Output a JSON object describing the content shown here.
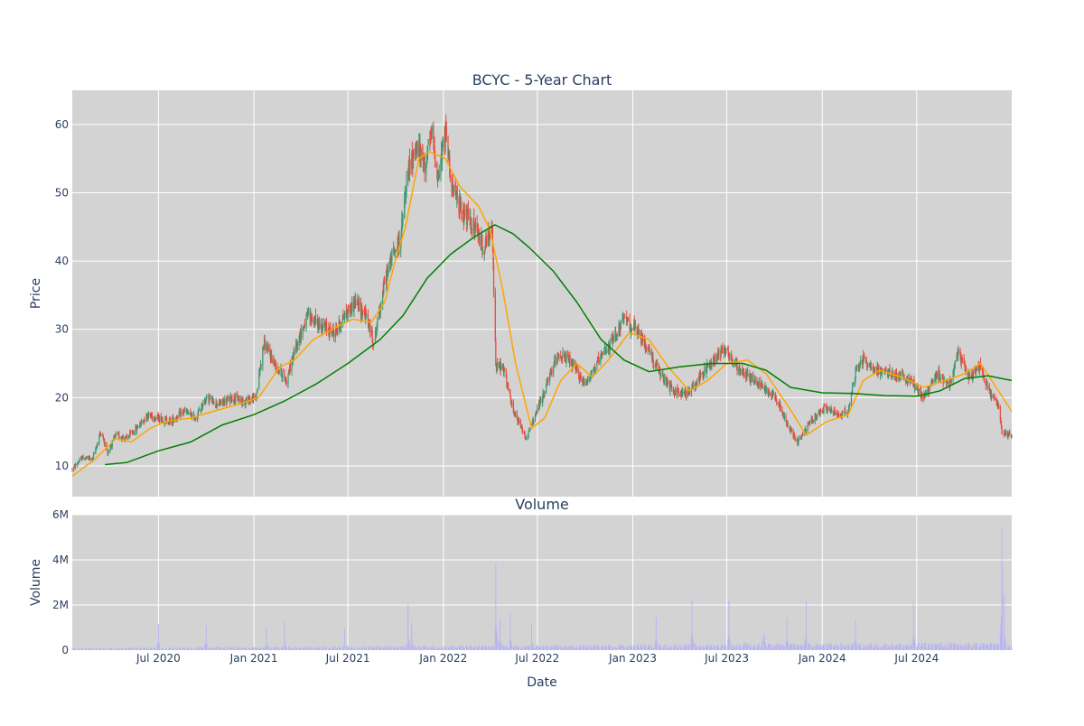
{
  "chart_data": [
    {
      "type": "candlestick",
      "title": "BCYC - 5-Year Chart",
      "xlabel": "",
      "ylabel": "Price",
      "yticks": [
        10,
        20,
        30,
        40,
        50,
        60
      ],
      "ylim": [
        5.5,
        65
      ],
      "xlim": [
        "2020-01-17",
        "2024-12-31"
      ],
      "grid": true,
      "background": "#d3d3d3",
      "increasing_color": "#3d9970",
      "decreasing_color": "#e74c3c",
      "price_path": [
        [
          "2020-01-17",
          9.5
        ],
        [
          "2020-02-05",
          11.2
        ],
        [
          "2020-02-25",
          11.0
        ],
        [
          "2020-03-12",
          15.0
        ],
        [
          "2020-03-25",
          12.0
        ],
        [
          "2020-04-10",
          14.5
        ],
        [
          "2020-05-01",
          14.0
        ],
        [
          "2020-05-20",
          15.5
        ],
        [
          "2020-06-10",
          17.5
        ],
        [
          "2020-07-01",
          17.0
        ],
        [
          "2020-07-25",
          16.5
        ],
        [
          "2020-08-20",
          18.0
        ],
        [
          "2020-09-10",
          17.0
        ],
        [
          "2020-10-01",
          20.0
        ],
        [
          "2020-10-25",
          19.0
        ],
        [
          "2020-11-20",
          20.0
        ],
        [
          "2020-12-15",
          19.5
        ],
        [
          "2021-01-05",
          20.0
        ],
        [
          "2021-01-20",
          28.0
        ],
        [
          "2021-02-10",
          25.0
        ],
        [
          "2021-03-05",
          22.5
        ],
        [
          "2021-03-25",
          28.0
        ],
        [
          "2021-04-15",
          32.0
        ],
        [
          "2021-05-10",
          30.5
        ],
        [
          "2021-06-05",
          29.5
        ],
        [
          "2021-06-25",
          32.0
        ],
        [
          "2021-07-15",
          34.0
        ],
        [
          "2021-08-05",
          32.0
        ],
        [
          "2021-08-20",
          28.0
        ],
        [
          "2021-09-10",
          37.0
        ],
        [
          "2021-09-25",
          41.0
        ],
        [
          "2021-10-10",
          43.0
        ],
        [
          "2021-10-25",
          53.0
        ],
        [
          "2021-11-10",
          57.0
        ],
        [
          "2021-11-25",
          54.0
        ],
        [
          "2021-12-10",
          58.5
        ],
        [
          "2021-12-22",
          52.0
        ],
        [
          "2022-01-05",
          59.0
        ],
        [
          "2022-01-20",
          50.0
        ],
        [
          "2022-02-10",
          47.0
        ],
        [
          "2022-03-01",
          45.0
        ],
        [
          "2022-03-20",
          42.0
        ],
        [
          "2022-04-05",
          44.5
        ],
        [
          "2022-04-12",
          25.0
        ],
        [
          "2022-04-28",
          24.0
        ],
        [
          "2022-05-15",
          18.0
        ],
        [
          "2022-06-10",
          14.0
        ],
        [
          "2022-06-25",
          17.0
        ],
        [
          "2022-07-15",
          21.0
        ],
        [
          "2022-08-10",
          26.5
        ],
        [
          "2022-09-05",
          25.0
        ],
        [
          "2022-09-30",
          22.0
        ],
        [
          "2022-10-25",
          25.0
        ],
        [
          "2022-11-20",
          28.0
        ],
        [
          "2022-12-15",
          31.5
        ],
        [
          "2023-01-05",
          30.0
        ],
        [
          "2023-02-01",
          27.0
        ],
        [
          "2023-02-25",
          23.0
        ],
        [
          "2023-03-20",
          21.0
        ],
        [
          "2023-04-15",
          20.5
        ],
        [
          "2023-05-10",
          23.0
        ],
        [
          "2023-06-05",
          25.5
        ],
        [
          "2023-06-25",
          27.5
        ],
        [
          "2023-07-20",
          24.5
        ],
        [
          "2023-08-15",
          23.0
        ],
        [
          "2023-09-10",
          21.5
        ],
        [
          "2023-10-05",
          20.0
        ],
        [
          "2023-10-25",
          16.0
        ],
        [
          "2023-11-15",
          13.5
        ],
        [
          "2023-12-10",
          16.5
        ],
        [
          "2024-01-05",
          18.5
        ],
        [
          "2024-02-01",
          17.5
        ],
        [
          "2024-02-20",
          18.0
        ],
        [
          "2024-03-05",
          24.0
        ],
        [
          "2024-03-20",
          25.5
        ],
        [
          "2024-04-15",
          24.0
        ],
        [
          "2024-05-10",
          23.5
        ],
        [
          "2024-06-05",
          23.0
        ],
        [
          "2024-06-25",
          22.0
        ],
        [
          "2024-07-15",
          20.0
        ],
        [
          "2024-08-10",
          23.5
        ],
        [
          "2024-09-01",
          22.0
        ],
        [
          "2024-09-20",
          26.5
        ],
        [
          "2024-10-10",
          23.0
        ],
        [
          "2024-11-01",
          24.5
        ],
        [
          "2024-11-20",
          20.5
        ],
        [
          "2024-12-05",
          19.0
        ],
        [
          "2024-12-12",
          15.0
        ],
        [
          "2024-12-31",
          14.5
        ]
      ],
      "series": [
        {
          "name": "",
          "color": "#ffa500",
          "points": [
            [
              "2020-01-17",
              8.5
            ],
            [
              "2020-03-01",
              11.0
            ],
            [
              "2020-04-10",
              14.0
            ],
            [
              "2020-05-10",
              13.5
            ],
            [
              "2020-06-15",
              15.5
            ],
            [
              "2020-07-15",
              16.5
            ],
            [
              "2020-09-01",
              17.0
            ],
            [
              "2020-10-15",
              18.0
            ],
            [
              "2020-12-01",
              19.0
            ],
            [
              "2021-01-10",
              20.0
            ],
            [
              "2021-02-20",
              24.5
            ],
            [
              "2021-03-20",
              25.5
            ],
            [
              "2021-04-25",
              28.5
            ],
            [
              "2021-06-01",
              30.0
            ],
            [
              "2021-07-10",
              31.5
            ],
            [
              "2021-08-15",
              31.0
            ],
            [
              "2021-09-10",
              34.0
            ],
            [
              "2021-09-30",
              40.0
            ],
            [
              "2021-10-20",
              45.0
            ],
            [
              "2021-11-15",
              55.0
            ],
            [
              "2021-12-05",
              56.0
            ],
            [
              "2022-01-05",
              55.0
            ],
            [
              "2022-02-01",
              51.0
            ],
            [
              "2022-03-10",
              48.0
            ],
            [
              "2022-04-01",
              44.5
            ],
            [
              "2022-04-25",
              36.0
            ],
            [
              "2022-05-20",
              25.0
            ],
            [
              "2022-06-20",
              15.5
            ],
            [
              "2022-07-15",
              17.0
            ],
            [
              "2022-08-15",
              22.5
            ],
            [
              "2022-09-15",
              25.0
            ],
            [
              "2022-10-15",
              23.0
            ],
            [
              "2022-11-15",
              25.5
            ],
            [
              "2022-12-25",
              29.5
            ],
            [
              "2023-02-01",
              28.5
            ],
            [
              "2023-03-10",
              24.5
            ],
            [
              "2023-04-20",
              21.0
            ],
            [
              "2023-05-25",
              22.5
            ],
            [
              "2023-07-01",
              25.0
            ],
            [
              "2023-08-10",
              25.5
            ],
            [
              "2023-09-15",
              23.5
            ],
            [
              "2023-10-25",
              19.0
            ],
            [
              "2023-12-01",
              14.5
            ],
            [
              "2024-01-10",
              16.5
            ],
            [
              "2024-02-20",
              17.5
            ],
            [
              "2024-03-20",
              22.5
            ],
            [
              "2024-04-20",
              24.0
            ],
            [
              "2024-06-01",
              23.0
            ],
            [
              "2024-07-15",
              21.5
            ],
            [
              "2024-08-25",
              22.5
            ],
            [
              "2024-10-01",
              23.5
            ],
            [
              "2024-11-01",
              25.0
            ],
            [
              "2024-12-01",
              21.5
            ],
            [
              "2024-12-31",
              18.0
            ]
          ]
        },
        {
          "name": "",
          "color": "#008000",
          "points": [
            [
              "2020-03-20",
              10.2
            ],
            [
              "2020-05-01",
              10.5
            ],
            [
              "2020-07-01",
              12.2
            ],
            [
              "2020-09-01",
              13.5
            ],
            [
              "2020-11-01",
              16.0
            ],
            [
              "2021-01-01",
              17.5
            ],
            [
              "2021-03-01",
              19.5
            ],
            [
              "2021-05-01",
              22.0
            ],
            [
              "2021-07-01",
              25.0
            ],
            [
              "2021-09-01",
              28.5
            ],
            [
              "2021-10-15",
              32.0
            ],
            [
              "2021-12-01",
              37.5
            ],
            [
              "2022-01-15",
              41.0
            ],
            [
              "2022-03-01",
              43.5
            ],
            [
              "2022-04-10",
              45.3
            ],
            [
              "2022-05-15",
              44.0
            ],
            [
              "2022-06-15",
              42.0
            ],
            [
              "2022-08-01",
              38.5
            ],
            [
              "2022-09-15",
              34.0
            ],
            [
              "2022-11-01",
              28.5
            ],
            [
              "2022-12-15",
              25.5
            ],
            [
              "2023-02-01",
              23.8
            ],
            [
              "2023-04-01",
              24.5
            ],
            [
              "2023-06-01",
              25.0
            ],
            [
              "2023-08-01",
              25.0
            ],
            [
              "2023-09-15",
              24.0
            ],
            [
              "2023-11-01",
              21.5
            ],
            [
              "2024-01-01",
              20.7
            ],
            [
              "2024-03-01",
              20.6
            ],
            [
              "2024-05-01",
              20.3
            ],
            [
              "2024-07-01",
              20.2
            ],
            [
              "2024-08-15",
              21.0
            ],
            [
              "2024-10-01",
              22.8
            ],
            [
              "2024-11-15",
              23.2
            ],
            [
              "2024-12-31",
              22.5
            ]
          ]
        }
      ]
    },
    {
      "type": "bar",
      "title": "Volume",
      "xlabel": "Date",
      "ylabel": "Volume",
      "ylim": [
        0,
        6000000
      ],
      "yticks": [
        0,
        2000000,
        4000000,
        6000000
      ],
      "ytick_labels": [
        "0",
        "2M",
        "4M",
        "6M"
      ],
      "xlim": [
        "2020-01-17",
        "2024-12-31"
      ],
      "xticks": [
        "2020-07-01",
        "2021-01-01",
        "2021-07-01",
        "2022-01-01",
        "2022-07-01",
        "2023-01-01",
        "2023-07-01",
        "2024-01-01",
        "2024-07-01"
      ],
      "xtick_labels": [
        "Jul 2020",
        "Jan 2021",
        "Jul 2021",
        "Jan 2022",
        "Jul 2022",
        "Jan 2023",
        "Jul 2023",
        "Jan 2024",
        "Jul 2024"
      ],
      "grid": true,
      "background": "#d3d3d3",
      "bar_color": "#b9b5f2",
      "baseline_volume": 150000,
      "spikes": [
        [
          "2020-07-01",
          1150000
        ],
        [
          "2020-10-01",
          1100000
        ],
        [
          "2021-01-25",
          1000000
        ],
        [
          "2021-03-01",
          1250000
        ],
        [
          "2021-06-25",
          950000
        ],
        [
          "2021-10-25",
          2050000
        ],
        [
          "2021-11-01",
          1200000
        ],
        [
          "2022-04-12",
          3800000
        ],
        [
          "2022-04-20",
          1400000
        ],
        [
          "2022-05-10",
          1650000
        ],
        [
          "2022-06-20",
          1150000
        ],
        [
          "2022-12-10",
          950000
        ],
        [
          "2023-02-15",
          1450000
        ],
        [
          "2023-04-25",
          2250000
        ],
        [
          "2023-07-05",
          2200000
        ],
        [
          "2023-08-05",
          1300000
        ],
        [
          "2023-09-10",
          2550000
        ],
        [
          "2023-10-25",
          1450000
        ],
        [
          "2023-11-05",
          1100000
        ],
        [
          "2023-12-01",
          2150000
        ],
        [
          "2024-03-05",
          1350000
        ],
        [
          "2024-06-25",
          2050000
        ],
        [
          "2024-09-15",
          950000
        ],
        [
          "2024-12-01",
          1050000
        ],
        [
          "2024-12-12",
          5400000
        ],
        [
          "2024-12-13",
          3700000
        ],
        [
          "2024-12-16",
          2500000
        ]
      ]
    }
  ]
}
